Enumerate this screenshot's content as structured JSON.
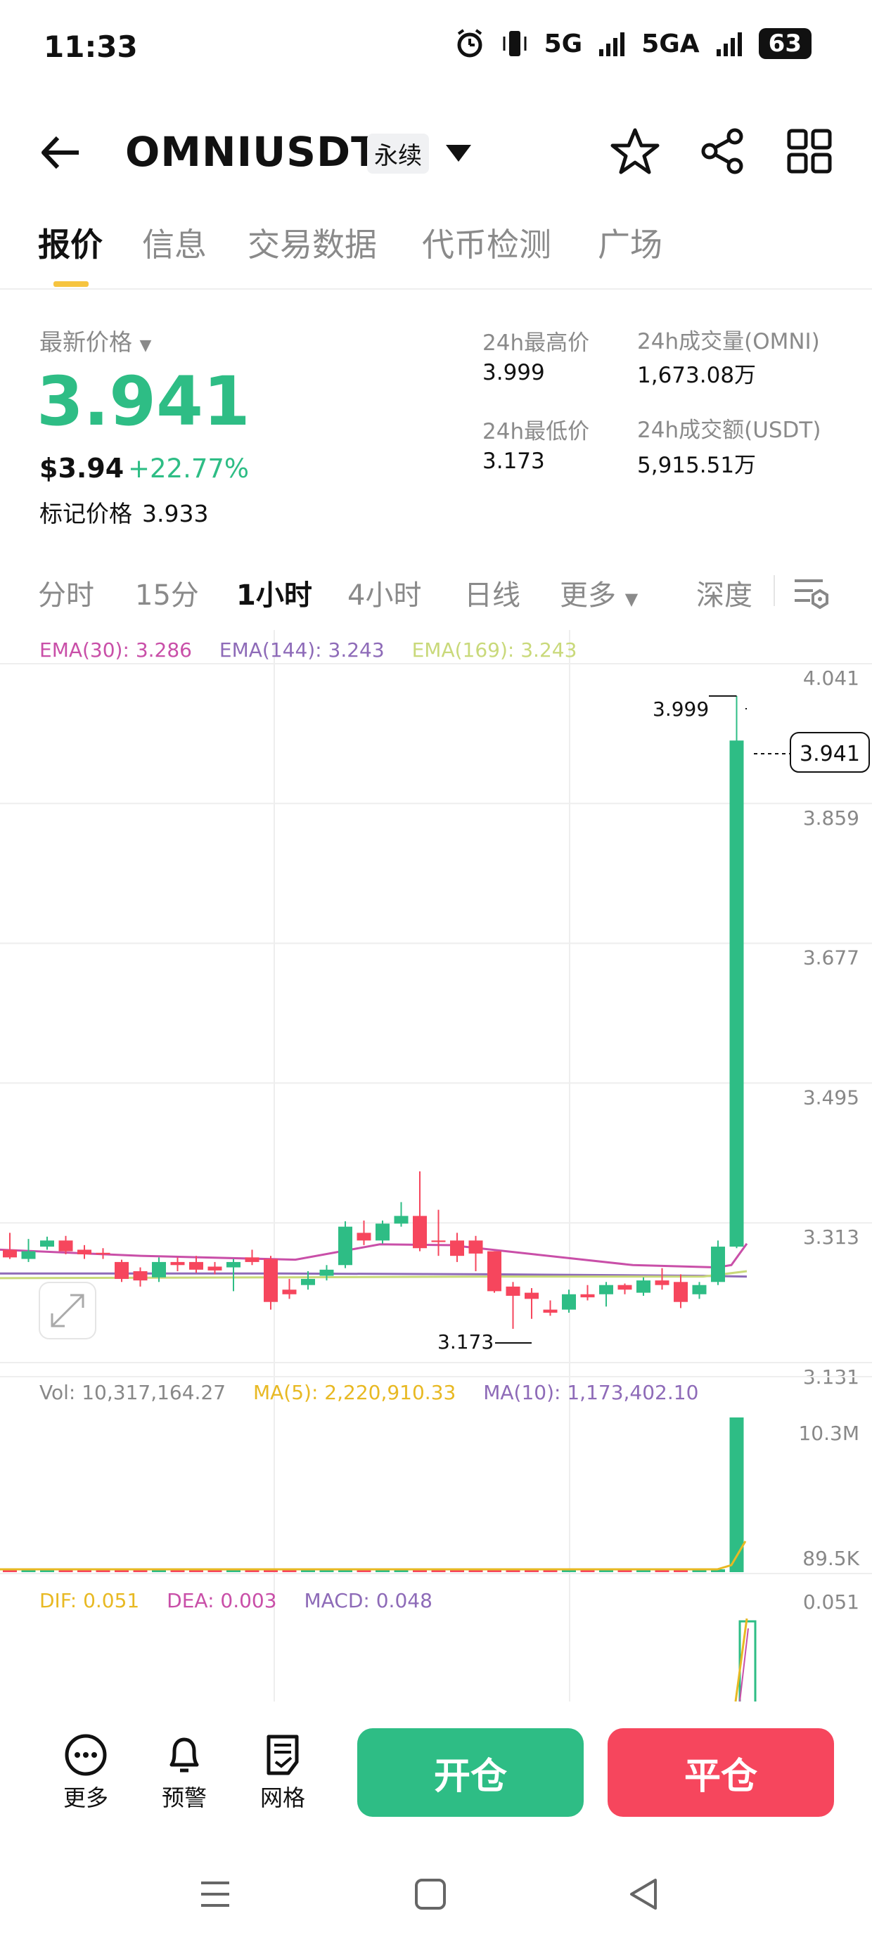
{
  "status_bar": {
    "time": "11:33",
    "net1": "5G",
    "net2": "5GA",
    "battery": "63"
  },
  "header": {
    "title": "OMNIUSDT",
    "badge": "永续"
  },
  "tabs": [
    "报价",
    "信息",
    "交易数据",
    "代币检测",
    "广场"
  ],
  "price": {
    "label": "最新价格",
    "last": "3.941",
    "usd": "$3.94",
    "change": "+22.77%",
    "mark_label": "标记价格",
    "mark_value": "3.933"
  },
  "stats": {
    "high_label": "24h最高价",
    "high_value": "3.999",
    "vol_label": "24h成交量(OMNI)",
    "vol_value": "1,673.08万",
    "low_label": "24h最低价",
    "low_value": "3.173",
    "turnover_label": "24h成交额(USDT)",
    "turnover_value": "5,915.51万"
  },
  "intervals": [
    "分时",
    "15分",
    "1小时",
    "4小时",
    "日线",
    "更多",
    "深度"
  ],
  "indicators": {
    "ema30": "EMA(30): 3.286",
    "ema144": "EMA(144): 3.243",
    "ema169": "EMA(169): 3.243",
    "vol": "Vol: 10,317,164.27",
    "ma5": "MA(5): 2,220,910.33",
    "ma10": "MA(10): 1,173,402.10",
    "dif": "DIF: 0.051",
    "dea": "DEA: 0.003",
    "macd": "MACD: 0.048"
  },
  "colors": {
    "up": "#2ebd85",
    "down": "#f6465d",
    "ema30": "#c94fa8",
    "ema144": "#8e6bb8",
    "ema169": "#c9d97a",
    "accent": "#f6c43f"
  },
  "chart_data": {
    "type": "candlestick",
    "y_ticks": [
      "4.041",
      "3.859",
      "3.677",
      "3.495",
      "3.313",
      "3.131"
    ],
    "ylim": [
      3.131,
      4.041
    ],
    "high_marker": "3.999",
    "low_marker": "3.173",
    "current_price_tag": "3.941",
    "volume_ticks": [
      "10.3M",
      "89.5K"
    ],
    "macd_ticks": [
      "0.051"
    ],
    "candles": [
      [
        3.278,
        3.3,
        3.268,
        3.266
      ],
      [
        3.266,
        3.292,
        3.276,
        3.262
      ],
      [
        3.282,
        3.295,
        3.29,
        3.278
      ],
      [
        3.29,
        3.296,
        3.276,
        3.272
      ],
      [
        3.278,
        3.284,
        3.272,
        3.266
      ],
      [
        3.274,
        3.28,
        3.272,
        3.266
      ],
      [
        3.262,
        3.265,
        3.24,
        3.236
      ],
      [
        3.25,
        3.255,
        3.238,
        3.23
      ],
      [
        3.242,
        3.268,
        3.262,
        3.236
      ],
      [
        3.262,
        3.268,
        3.258,
        3.25
      ],
      [
        3.262,
        3.27,
        3.252,
        3.248
      ],
      [
        3.256,
        3.262,
        3.251,
        3.246
      ],
      [
        3.255,
        3.266,
        3.262,
        3.224
      ],
      [
        3.268,
        3.278,
        3.262,
        3.258
      ],
      [
        3.266,
        3.27,
        3.21,
        3.2
      ],
      [
        3.226,
        3.24,
        3.22,
        3.214
      ],
      [
        3.232,
        3.25,
        3.24,
        3.226
      ],
      [
        3.244,
        3.258,
        3.252,
        3.238
      ],
      [
        3.258,
        3.315,
        3.308,
        3.254
      ],
      [
        3.3,
        3.316,
        3.29,
        3.284
      ],
      [
        3.29,
        3.316,
        3.312,
        3.286
      ],
      [
        3.312,
        3.34,
        3.322,
        3.308
      ],
      [
        3.322,
        3.38,
        3.28,
        3.276
      ],
      [
        3.29,
        3.33,
        3.288,
        3.27
      ],
      [
        3.29,
        3.3,
        3.27,
        3.262
      ],
      [
        3.29,
        3.296,
        3.273,
        3.25
      ],
      [
        3.276,
        3.276,
        3.224,
        3.222
      ],
      [
        3.23,
        3.236,
        3.218,
        3.175
      ],
      [
        3.222,
        3.228,
        3.214,
        3.188
      ],
      [
        3.2,
        3.212,
        3.196,
        3.192
      ],
      [
        3.2,
        3.226,
        3.22,
        3.196
      ],
      [
        3.22,
        3.232,
        3.216,
        3.212
      ],
      [
        3.22,
        3.236,
        3.232,
        3.204
      ],
      [
        3.232,
        3.234,
        3.226,
        3.22
      ],
      [
        3.222,
        3.242,
        3.238,
        3.218
      ],
      [
        3.238,
        3.254,
        3.232,
        3.226
      ],
      [
        3.236,
        3.246,
        3.21,
        3.202
      ],
      [
        3.22,
        3.236,
        3.232,
        3.214
      ],
      [
        3.236,
        3.29,
        3.282,
        3.232
      ],
      [
        3.282,
        3.999,
        3.941,
        3.28
      ]
    ]
  },
  "bottom_bar": {
    "more": "更多",
    "alert": "预警",
    "grid": "网格",
    "open": "开仓",
    "close": "平仓"
  }
}
